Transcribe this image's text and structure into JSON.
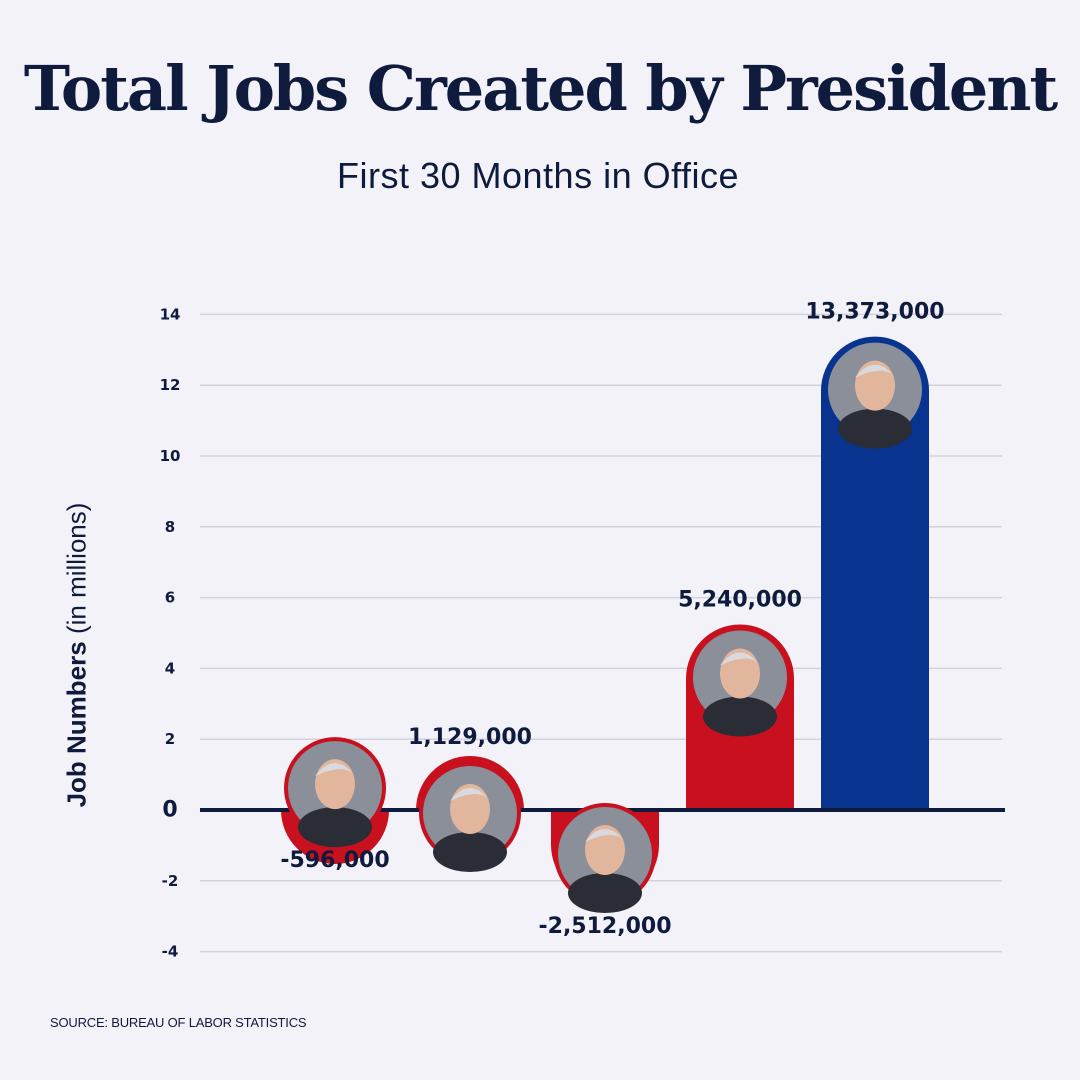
{
  "title": "Total Jobs Created by President",
  "subtitle": "First 30 Months in Office",
  "source": "SOURCE: BUREAU OF LABOR STATISTICS",
  "chart_data": {
    "type": "bar",
    "title": "Total Jobs Created by President",
    "subtitle": "First 30 Months in Office",
    "ylabel_bold": "Job Numbers",
    "ylabel_rest": " (in millions)",
    "xlabel": "",
    "ylim": [
      -4,
      14
    ],
    "yticks": [
      -4,
      -2,
      0,
      2,
      4,
      6,
      8,
      10,
      12,
      14
    ],
    "grid": true,
    "bars": [
      {
        "value": -596000,
        "label": "-596,000",
        "color": "#c8101f",
        "avatar": "portrait"
      },
      {
        "value": 1129000,
        "label": "1,129,000",
        "color": "#c8101f",
        "avatar": "portrait"
      },
      {
        "value": -2512000,
        "label": "-2,512,000",
        "color": "#c8101f",
        "avatar": "portrait"
      },
      {
        "value": 5240000,
        "label": "5,240,000",
        "color": "#c8101f",
        "avatar": "portrait"
      },
      {
        "value": 13373000,
        "label": "13,373,000",
        "color": "#08338f",
        "avatar": "portrait"
      }
    ],
    "colors": {
      "republican": "#c8101f",
      "democrat": "#08338f",
      "axis": "#0f1b3d",
      "grid": "#d3d3dd"
    }
  }
}
